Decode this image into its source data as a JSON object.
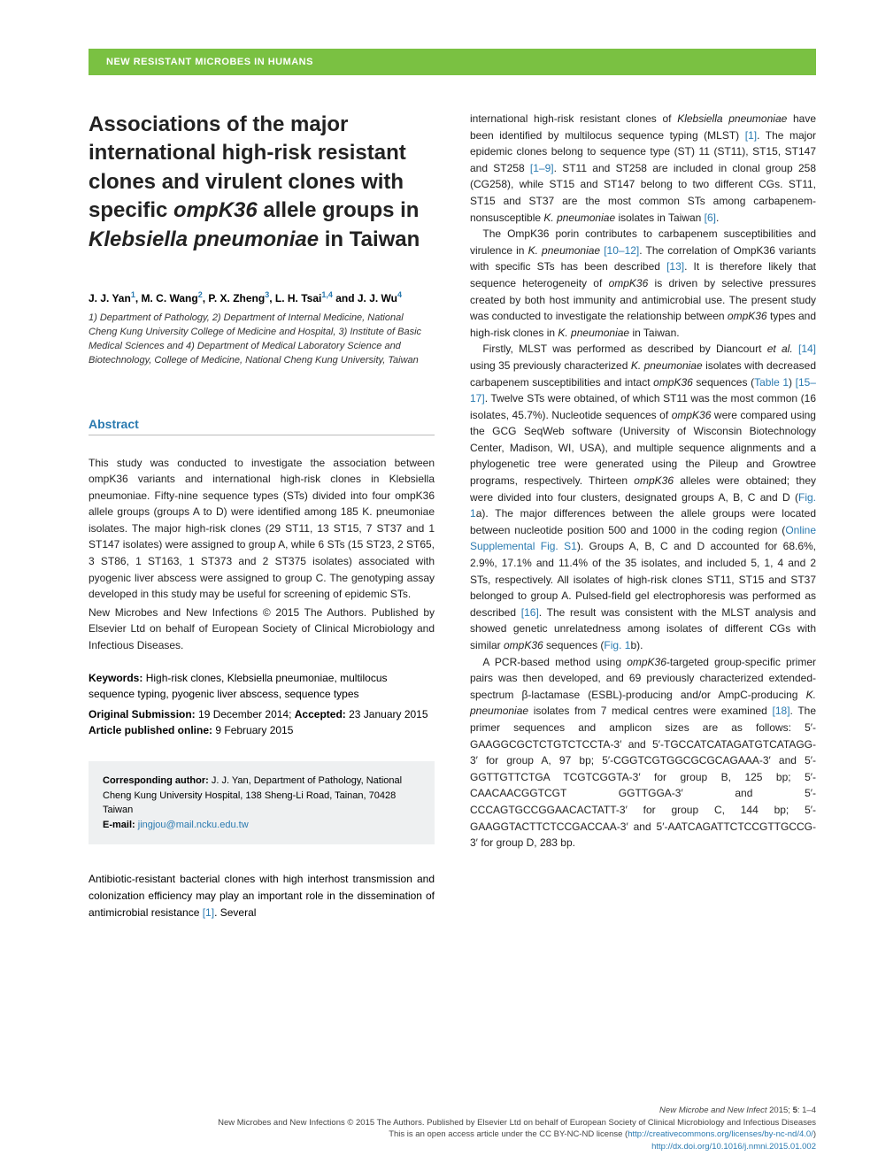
{
  "banner": "NEW RESISTANT MICROBES IN HUMANS",
  "title_pre": "Associations of the major international high-risk resistant clones and virulent clones with specific ",
  "title_gene": "ompK36",
  "title_mid": " allele groups in ",
  "title_species": "Klebsiella pneumoniae",
  "title_post": " in Taiwan",
  "authors_html": "J. J. Yan<sup>1</sup>, M. C. Wang<sup>2</sup>, P. X. Zheng<sup>3</sup>, L. H. Tsai<sup>1,4</sup> and J. J. Wu<sup>4</sup>",
  "affil": "1) Department of Pathology, 2) Department of Internal Medicine, National Cheng Kung University College of Medicine and Hospital, 3) Institute of Basic Medical Sciences and 4) Department of Medical Laboratory Science and Biotechnology, College of Medicine, National Cheng Kung University, Taiwan",
  "abstract_head": "Abstract",
  "abstract_p1": "This study was conducted to investigate the association between ompK36 variants and international high-risk clones in Klebsiella pneumoniae. Fifty-nine sequence types (STs) divided into four ompK36 allele groups (groups A to D) were identified among 185 K. pneumoniae isolates. The major high-risk clones (29 ST11, 13 ST15, 7 ST37 and 1 ST147 isolates) were assigned to group A, while 6 STs (15 ST23, 2 ST65, 3 ST86, 1 ST163, 1 ST373 and 2 ST375 isolates) associated with pyogenic liver abscess were assigned to group C. The genotyping assay developed in this study may be useful for screening of epidemic STs.",
  "abstract_p2": "New Microbes and New Infections © 2015 The Authors. Published by Elsevier Ltd on behalf of European Society of Clinical Microbiology and Infectious Diseases.",
  "kw_label": "Keywords:",
  "kw_text": " High-risk clones, Klebsiella pneumoniae, multilocus sequence typing, pyogenic liver abscess, sequence types",
  "sub_label1": "Original Submission:",
  "sub_text1": " 19 December 2014; ",
  "sub_label2": "Accepted:",
  "sub_text2": " 23 January 2015",
  "pub_label": "Article published online:",
  "pub_text": " 9 February 2015",
  "corr_label": "Corresponding author:",
  "corr_text": " J. J. Yan, Department of Pathology, National Cheng Kung University Hospital, 138 Sheng-Li Road, Tainan, 70428 Taiwan",
  "email_label": "E-mail:",
  "email_val": " jingjou@mail.ncku.edu.tw",
  "left_bottom": "Antibiotic-resistant bacterial clones with high interhost transmission and colonization efficiency may play an important role in the dissemination of antimicrobial resistance ",
  "left_bottom_ref": "[1]",
  "left_bottom_tail": ". Several",
  "r_p1a": "international high-risk resistant clones of ",
  "r_p1b": "Klebsiella pneumoniae",
  "r_p1c": " have been identified by multilocus sequence typing (MLST) ",
  "r_p1_ref1": "[1]",
  "r_p1d": ". The major epidemic clones belong to sequence type (ST) 11 (ST11), ST15, ST147 and ST258 ",
  "r_p1_ref2": "[1–9]",
  "r_p1e": ". ST11 and ST258 are included in clonal group 258 (CG258), while ST15 and ST147 belong to two different CGs. ST11, ST15 and ST37 are the most common STs among carbapenem-nonsusceptible ",
  "r_p1f": "K. pneumoniae",
  "r_p1g": " isolates in Taiwan ",
  "r_p1_ref3": "[6]",
  "r_p1h": ".",
  "r_p2a": "The OmpK36 porin contributes to carbapenem susceptibilities and virulence in ",
  "r_p2b": "K. pneumoniae ",
  "r_p2_ref1": "[10–12]",
  "r_p2c": ". The correlation of OmpK36 variants with specific STs has been described ",
  "r_p2_ref2": "[13]",
  "r_p2d": ". It is therefore likely that sequence heterogeneity of ",
  "r_p2e": "ompK36",
  "r_p2f": " is driven by selective pressures created by both host immunity and antimicrobial use. The present study was conducted to investigate the relationship between ",
  "r_p2g": "ompK36",
  "r_p2h": " types and high-risk clones in ",
  "r_p2i": "K. pneumoniae",
  "r_p2j": " in Taiwan.",
  "r_p3a": "Firstly, MLST was performed as described by Diancourt ",
  "r_p3b": "et al.",
  "r_p3c": " ",
  "r_p3_ref1": "[14]",
  "r_p3d": " using 35 previously characterized ",
  "r_p3e": "K. pneumoniae",
  "r_p3f": " isolates with decreased carbapenem susceptibilities and intact ",
  "r_p3g": "ompK36",
  "r_p3h": " sequences (",
  "r_p3_tbl": "Table 1",
  "r_p3i": ") ",
  "r_p3_ref2": "[15–17]",
  "r_p3j": ". Twelve STs were obtained, of which ST11 was the most common (16 isolates, 45.7%). Nucleotide sequences of ",
  "r_p3k": "ompK36",
  "r_p3l": " were compared using the GCG SeqWeb software (University of Wisconsin Biotechnology Center, Madison, WI, USA), and multiple sequence alignments and a phylogenetic tree were generated using the Pileup and Growtree programs, respectively. Thirteen ",
  "r_p3m": "ompK36",
  "r_p3n": " alleles were obtained; they were divided into four clusters, designated groups A, B, C and D (",
  "r_p3_fig1": "Fig. 1",
  "r_p3o": "a). The major differences between the allele groups were located between nucleotide position 500 and 1000 in the coding region (",
  "r_p3_sup": "Online Supplemental Fig. S1",
  "r_p3p": "). Groups A, B, C and D accounted for 68.6%, 2.9%, 17.1% and 11.4% of the 35 isolates, and included 5, 1, 4 and 2 STs, respectively. All isolates of high-risk clones ST11, ST15 and ST37 belonged to group A. Pulsed-field gel electrophoresis was performed as described ",
  "r_p3_ref3": "[16]",
  "r_p3q": ". The result was consistent with the MLST analysis and showed genetic unrelatedness among isolates of different CGs with similar ",
  "r_p3r": "ompK36",
  "r_p3s": " sequences (",
  "r_p3_fig2": "Fig. 1",
  "r_p3t": "b).",
  "r_p4a": "A PCR-based method using ",
  "r_p4b": "ompK36",
  "r_p4c": "-targeted group-specific primer pairs was then developed, and 69 previously characterized extended-spectrum β-lactamase (ESBL)-producing and/or AmpC-producing ",
  "r_p4d": "K. pneumoniae",
  "r_p4e": " isolates from 7 medical centres were examined ",
  "r_p4_ref1": "[18]",
  "r_p4f": ". The primer sequences and amplicon sizes are as follows: 5′-GAAGGCGCTCTGTCTCCTA-3′ and 5′-TGCCATCATAGATGTCATAGG-3′ for group A, 97 bp; 5′-CGGTCGTGGCGCGCAGAAA-3′ and 5′-GGTTGTTCTGA TCGTCGGTA-3′ for group B, 125 bp; 5′-CAACAACGGTCGT GGTTGGA-3′ and 5′-CCCAGTGCCGGAACACTATT-3′ for group C, 144 bp; 5′-GAAGGTACTTCTCCGACCAA-3′ and 5′-AATCAGATTCTCCGTTGCCG-3′ for group D, 283 bp.",
  "footer_j": "New Microbe and New Infect",
  "footer_j2": " 2015; ",
  "footer_vol": "5",
  "footer_pg": ": 1–4",
  "footer_cpy": "New Microbes and New Infections © 2015 The Authors. Published by Elsevier Ltd on behalf of European Society of Clinical Microbiology and Infectious Diseases",
  "footer_lic_pre": "This is an open access article under the CC BY-NC-ND license (",
  "footer_lic": "http://creativecommons.org/licenses/by-nc-nd/4.0/",
  "footer_lic_post": ")",
  "footer_doi": "http://dx.doi.org/10.1016/j.nmni.2015.01.002"
}
